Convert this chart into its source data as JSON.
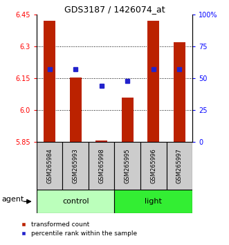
{
  "title": "GDS3187 / 1426074_at",
  "samples": [
    "GSM265984",
    "GSM265993",
    "GSM265998",
    "GSM265995",
    "GSM265996",
    "GSM265997"
  ],
  "groups": [
    "control",
    "control",
    "control",
    "light",
    "light",
    "light"
  ],
  "bar_bottoms": [
    5.85,
    5.85,
    5.85,
    5.85,
    5.85,
    5.85
  ],
  "bar_tops": [
    6.42,
    6.155,
    5.858,
    6.06,
    6.42,
    6.32
  ],
  "percentile_ranks": [
    57,
    57,
    44,
    48,
    57,
    57
  ],
  "ylim_left": [
    5.85,
    6.45
  ],
  "ylim_right": [
    0,
    100
  ],
  "yticks_left": [
    5.85,
    6.0,
    6.15,
    6.3,
    6.45
  ],
  "yticks_right": [
    0,
    25,
    50,
    75,
    100
  ],
  "ytick_labels_right": [
    "0",
    "25",
    "50",
    "75",
    "100%"
  ],
  "hlines": [
    6.0,
    6.15,
    6.3
  ],
  "bar_color": "#bb2200",
  "dot_color": "#2222cc",
  "control_color": "#bbffbb",
  "light_color": "#33ee33",
  "bar_width": 0.45,
  "legend_dot_label": "transformed count",
  "legend_blue_label": "percentile rank within the sample",
  "agent_label": "agent",
  "sample_box_color": "#cccccc",
  "title_fontsize": 9,
  "tick_fontsize": 7,
  "sample_fontsize": 6,
  "group_fontsize": 8,
  "legend_fontsize": 6.5,
  "agent_fontsize": 8
}
